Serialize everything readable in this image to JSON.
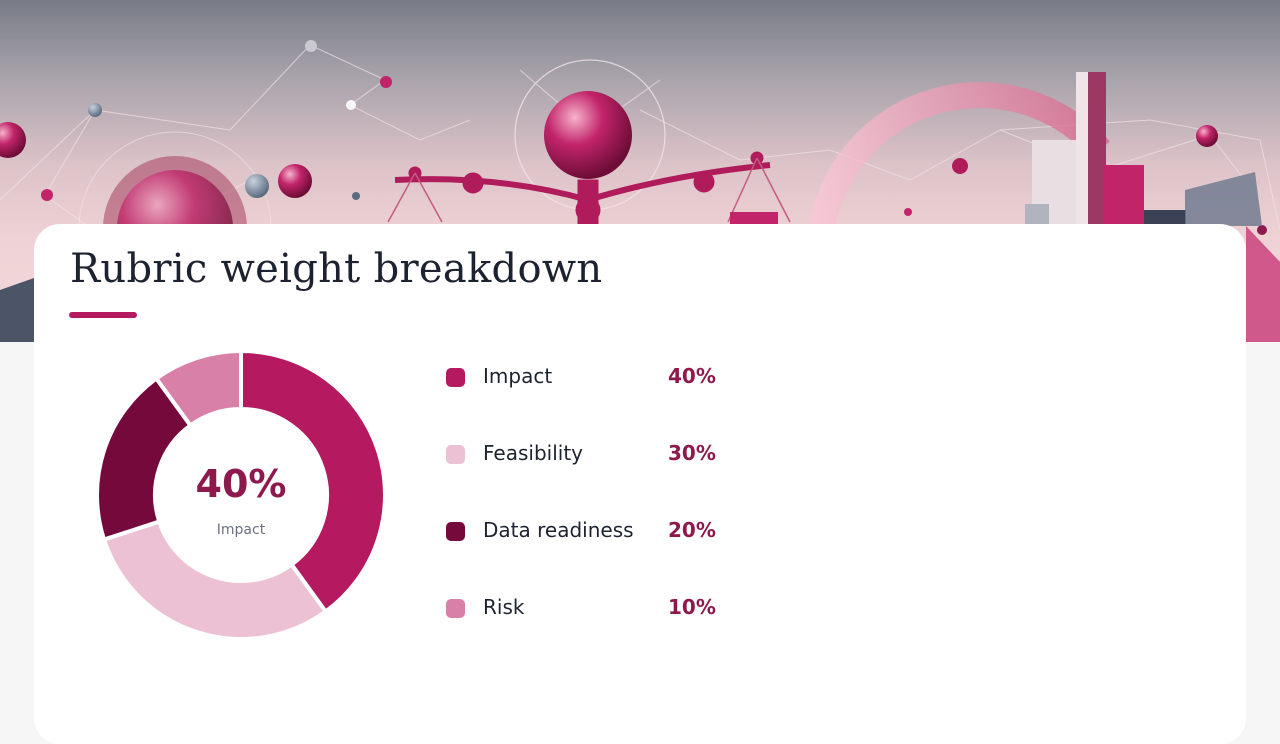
{
  "slide": {
    "title": "Rubric weight breakdown"
  },
  "colors": {
    "accent": "#b5195f",
    "value_text": "#8e1a4d"
  },
  "donut_center": {
    "value": "40%",
    "label": "Impact"
  },
  "legend": [
    {
      "label": "Impact",
      "value": "40%",
      "color": "#b5195f"
    },
    {
      "label": "Feasibility",
      "value": "30%",
      "color": "#ecc1d4"
    },
    {
      "label": "Data readiness",
      "value": "20%",
      "color": "#76093c"
    },
    {
      "label": "Risk",
      "value": "10%",
      "color": "#d880a8"
    }
  ],
  "chart_data": {
    "type": "pie",
    "style": "donut",
    "title": "Rubric weight breakdown",
    "categories": [
      "Impact",
      "Feasibility",
      "Data readiness",
      "Risk"
    ],
    "values": [
      40,
      30,
      20,
      10
    ],
    "unit": "%",
    "colors": [
      "#b5195f",
      "#ecc1d4",
      "#76093c",
      "#d880a8"
    ],
    "legend": "right"
  }
}
